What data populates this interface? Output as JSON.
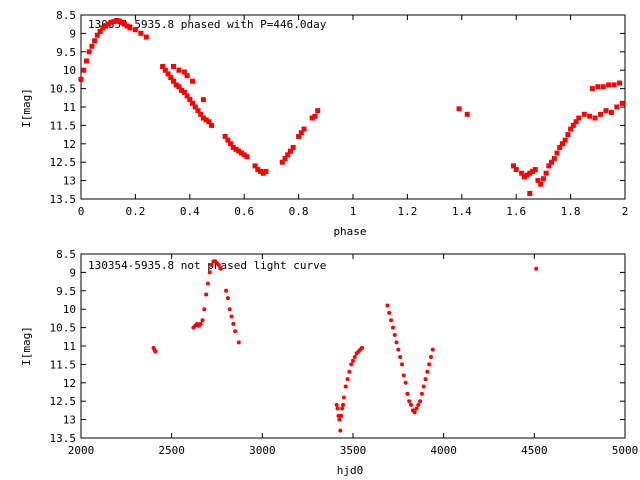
{
  "chart_data": [
    {
      "type": "scatter",
      "title": "130354-5935.8 phased with P=446.0day",
      "xlabel": "phase",
      "ylabel": "I[mag]",
      "xlim": [
        0,
        2
      ],
      "ylim": [
        13.5,
        8.5
      ],
      "y_inverted": true,
      "x_ticks": [
        "0",
        "0.2",
        "0.4",
        "0.6",
        "0.8",
        "1",
        "1.2",
        "1.4",
        "1.6",
        "1.8",
        "2"
      ],
      "y_ticks": [
        "8.5",
        "9",
        "9.5",
        "10",
        "10.5",
        "11",
        "11.5",
        "12",
        "12.5",
        "13",
        "13.5"
      ],
      "grid": false,
      "marker_color": "#ff0000",
      "series": [
        {
          "x": [
            0.0,
            0.01,
            0.02,
            0.03,
            0.04,
            0.05,
            0.06,
            0.07,
            0.08,
            0.09,
            0.1,
            0.11,
            0.12,
            0.13,
            0.14,
            0.15,
            0.16,
            0.17,
            0.18,
            0.2,
            0.22,
            0.24,
            0.3,
            0.31,
            0.32,
            0.33,
            0.34,
            0.35,
            0.36,
            0.37,
            0.38,
            0.39,
            0.4,
            0.41,
            0.42,
            0.43,
            0.44,
            0.45,
            0.46,
            0.47,
            0.48,
            0.34,
            0.36,
            0.38,
            0.39,
            0.41,
            0.45,
            0.53,
            0.54,
            0.55,
            0.56,
            0.57,
            0.58,
            0.59,
            0.6,
            0.61,
            0.64,
            0.65,
            0.66,
            0.67,
            0.68,
            0.74,
            0.75,
            0.76,
            0.77,
            0.78,
            0.8,
            0.81,
            0.82,
            0.85,
            0.86,
            0.87,
            1.39,
            1.42,
            1.59,
            1.6,
            1.62,
            1.63,
            1.64,
            1.65,
            1.66,
            1.67,
            1.68,
            1.69,
            1.7,
            1.71,
            1.72,
            1.73,
            1.74,
            1.75,
            1.76,
            1.77,
            1.78,
            1.79,
            1.8,
            1.81,
            1.82,
            1.83,
            1.85,
            1.87,
            1.89,
            1.91,
            1.93,
            1.95,
            1.97,
            1.99,
            1.88,
            1.9,
            1.92,
            1.94,
            1.96,
            1.98,
            1.65
          ],
          "y": [
            10.25,
            10.0,
            9.75,
            9.5,
            9.35,
            9.2,
            9.05,
            8.95,
            8.85,
            8.8,
            8.75,
            8.7,
            8.68,
            8.65,
            8.66,
            8.7,
            8.75,
            8.8,
            8.85,
            8.9,
            9.0,
            9.1,
            9.9,
            10.0,
            10.1,
            10.2,
            10.3,
            10.4,
            10.45,
            10.55,
            10.6,
            10.7,
            10.8,
            10.9,
            11.0,
            11.1,
            11.2,
            11.3,
            11.35,
            11.4,
            11.5,
            9.9,
            10.0,
            10.05,
            10.15,
            10.3,
            10.8,
            11.8,
            11.9,
            12.0,
            12.1,
            12.15,
            12.2,
            12.25,
            12.3,
            12.35,
            12.6,
            12.7,
            12.75,
            12.8,
            12.75,
            12.5,
            12.4,
            12.3,
            12.2,
            12.1,
            11.8,
            11.7,
            11.6,
            11.3,
            11.25,
            11.1,
            11.05,
            11.2,
            12.6,
            12.7,
            12.8,
            12.9,
            12.85,
            12.8,
            12.75,
            12.7,
            13.0,
            13.1,
            12.95,
            12.8,
            12.6,
            12.5,
            12.4,
            12.25,
            12.1,
            12.0,
            11.9,
            11.75,
            11.6,
            11.5,
            11.4,
            11.3,
            11.2,
            11.25,
            11.3,
            11.2,
            11.1,
            11.15,
            11.0,
            10.9,
            10.5,
            10.45,
            10.45,
            10.4,
            10.4,
            10.35,
            13.35
          ]
        }
      ]
    },
    {
      "type": "scatter",
      "title": "130354-5935.8 not phased light curve",
      "xlabel": "hjd0",
      "ylabel": "I[mag]",
      "xlim": [
        2000,
        5000
      ],
      "ylim": [
        13.5,
        8.5
      ],
      "y_inverted": true,
      "x_ticks": [
        "2000",
        "2500",
        "3000",
        "3500",
        "4000",
        "4500",
        "5000"
      ],
      "y_ticks": [
        "8.5",
        "9",
        "9.5",
        "10",
        "10.5",
        "11",
        "11.5",
        "12",
        "12.5",
        "13",
        "13.5"
      ],
      "grid": false,
      "marker_color": "#ff0000",
      "series": [
        {
          "x": [
            2400,
            2405,
            2410,
            2620,
            2630,
            2640,
            2650,
            2660,
            2670,
            2680,
            2690,
            2700,
            2710,
            2720,
            2730,
            2740,
            2750,
            2760,
            2770,
            2800,
            2810,
            2820,
            2830,
            2840,
            2850,
            2870,
            3410,
            3415,
            3420,
            3425,
            3430,
            3435,
            3440,
            3445,
            3450,
            3460,
            3470,
            3480,
            3490,
            3500,
            3510,
            3520,
            3530,
            3540,
            3550,
            3690,
            3700,
            3710,
            3720,
            3730,
            3740,
            3750,
            3760,
            3770,
            3780,
            3790,
            3800,
            3810,
            3820,
            3830,
            3840,
            3850,
            3860,
            3870,
            3880,
            3890,
            3900,
            3910,
            3920,
            3930,
            3940,
            4510
          ],
          "y": [
            11.05,
            11.1,
            11.15,
            10.5,
            10.45,
            10.4,
            10.45,
            10.4,
            10.3,
            10.0,
            9.6,
            9.3,
            9.0,
            8.8,
            8.7,
            8.7,
            8.75,
            8.8,
            8.9,
            9.5,
            9.7,
            10.0,
            10.2,
            10.4,
            10.6,
            10.9,
            12.6,
            12.7,
            12.9,
            13.0,
            13.3,
            12.9,
            12.7,
            12.6,
            12.4,
            12.1,
            11.9,
            11.7,
            11.5,
            11.4,
            11.3,
            11.2,
            11.15,
            11.1,
            11.05,
            9.9,
            10.1,
            10.3,
            10.5,
            10.7,
            10.9,
            11.1,
            11.3,
            11.5,
            11.8,
            12.0,
            12.3,
            12.5,
            12.6,
            12.75,
            12.8,
            12.7,
            12.6,
            12.5,
            12.3,
            12.1,
            11.9,
            11.7,
            11.5,
            11.3,
            11.1,
            8.9
          ]
        }
      ]
    }
  ]
}
